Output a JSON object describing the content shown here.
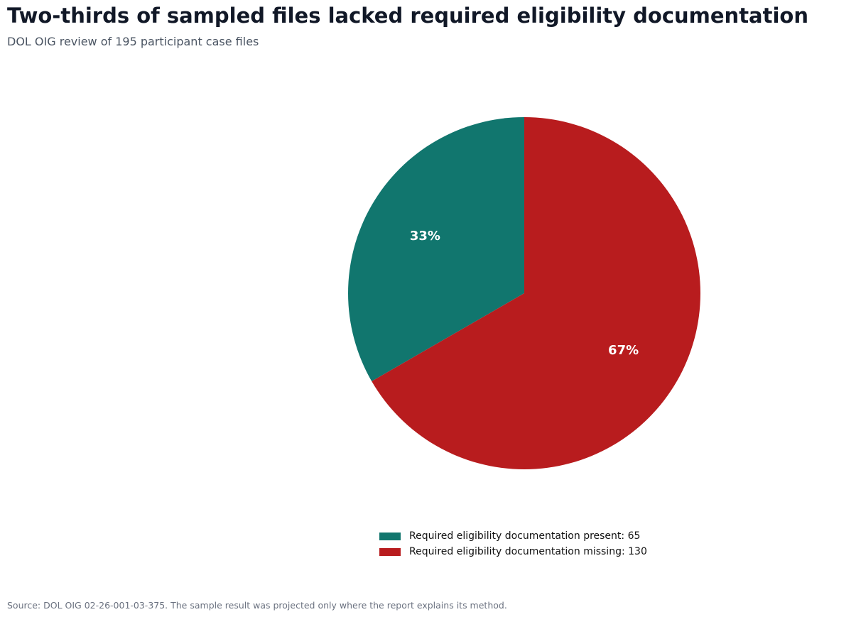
{
  "header": {
    "title": "Two-thirds of sampled files lacked required eligibility documentation",
    "subtitle": "DOL OIG review of 195 participant case files"
  },
  "chart_data": {
    "type": "pie",
    "title": "Two-thirds of sampled files lacked required eligibility documentation",
    "subtitle": "DOL OIG review of 195 participant case files",
    "start_angle": "12 o'clock",
    "direction": "counterclockwise",
    "legend_placement": "bottom",
    "slices": [
      {
        "label": "Required eligibility documentation present: 65",
        "value": 65,
        "pct_label": "33%",
        "color": "#11766e"
      },
      {
        "label": "Required eligibility documentation missing: 130",
        "value": 130,
        "pct_label": "67%",
        "color": "#b81c1e"
      }
    ]
  },
  "footer": {
    "source": "Source: DOL OIG 02-26-001-03-375. The sample result was projected only where the report explains its method."
  }
}
